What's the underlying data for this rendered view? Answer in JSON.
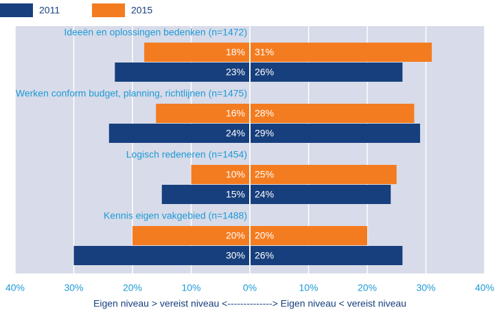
{
  "chart_data": {
    "type": "diverging_bar",
    "categories": [
      "Ideeën en oplossingen bedenken (n=1472)",
      "Werken conform budget, planning, richtlijnen (n=1475)",
      "Logisch redeneren (n=1454)",
      "Kennis eigen vakgebied (n=1488)"
    ],
    "series": [
      {
        "name": "2011",
        "color": "#173f7d",
        "values_left": [
          23,
          24,
          15,
          30
        ],
        "value_labels_left": [
          "23%",
          "24%",
          "15%",
          "30%"
        ],
        "values_right": [
          26,
          29,
          24,
          26
        ],
        "value_labels_right": [
          "26%",
          "29%",
          "24%",
          "26%"
        ]
      },
      {
        "name": "2015",
        "color": "#f47c20",
        "values_left": [
          18,
          16,
          10,
          20
        ],
        "value_labels_left": [
          "18%",
          "16%",
          "10%",
          "20%"
        ],
        "values_right": [
          31,
          28,
          25,
          20
        ],
        "value_labels_right": [
          "31%",
          "28%",
          "25%",
          "20%"
        ]
      }
    ],
    "xlim": [
      -40,
      40
    ],
    "xticks": [
      {
        "value": -40,
        "label": "40%"
      },
      {
        "value": -30,
        "label": "30%"
      },
      {
        "value": -20,
        "label": "20%"
      },
      {
        "value": -10,
        "label": "10%"
      },
      {
        "value": 0,
        "label": "0%"
      },
      {
        "value": 10,
        "label": "10%"
      },
      {
        "value": 20,
        "label": "20%"
      },
      {
        "value": 30,
        "label": "30%"
      },
      {
        "value": 40,
        "label": "40%"
      }
    ],
    "x_label": "Eigen niveau > vereist niveau <--------------> Eigen niveau < vereist niveau",
    "grid": true
  }
}
